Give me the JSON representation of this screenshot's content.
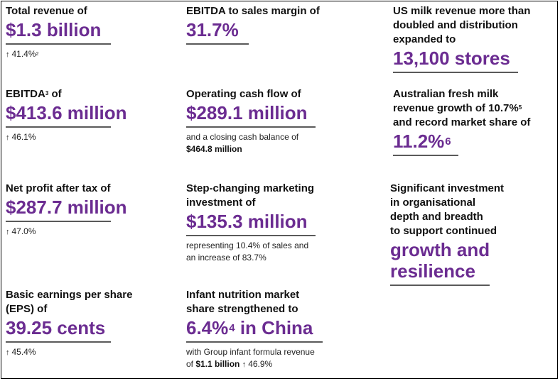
{
  "col1": {
    "revenue": {
      "label": "Total revenue of",
      "value": "$1.3 billion",
      "growth": "41.4%",
      "growth_note": "2"
    },
    "ebitda": {
      "label": "EBITDA",
      "label_note": "3",
      "label_suffix": " of",
      "value": "$413.6 million",
      "growth": "46.1%"
    },
    "npat": {
      "label": "Net profit after tax of",
      "value": "$287.7 million",
      "growth": "47.0%"
    },
    "eps": {
      "label_line1": "Basic earnings per share",
      "label_line2": "(EPS) of",
      "value": "39.25 cents",
      "growth": "45.4%"
    }
  },
  "col2": {
    "margin": {
      "label": "EBITDA to sales margin of",
      "value": "31.7%"
    },
    "cashflow": {
      "label": "Operating cash flow of",
      "value": "$289.1 million",
      "note_line1": "and a closing cash balance of",
      "note_line2": "$464.8 million"
    },
    "marketing": {
      "label_line1": "Step-changing marketing",
      "label_line2": "investment of",
      "value": "$135.3 million",
      "note_line1": "representing 10.4% of sales and",
      "note_line2": "an increase of 83.7%"
    },
    "infant": {
      "label_line1": "Infant nutrition market",
      "label_line2": "share strengthened to",
      "value_main": "6.4%",
      "value_note": "4",
      "value_suffix": " in China",
      "note_line1": "with Group infant formula revenue",
      "note_prefix": "of ",
      "note_bold": "$1.1 billion",
      "note_growth": "46.9%"
    }
  },
  "col3": {
    "us": {
      "label_line1": "US milk revenue more than",
      "label_line2": "doubled and distribution",
      "label_line3": "expanded to",
      "value": "13,100 stores"
    },
    "australia": {
      "label_line1": "Australian fresh milk",
      "label_line2": "revenue growth of 10.7%",
      "label_line2_note": "5",
      "label_line3": "and record market share of",
      "value": "11.2%",
      "value_note": "6"
    },
    "investment": {
      "label_line1": "Significant investment",
      "label_line2": "in organisational",
      "label_line3": "depth and breadth",
      "label_line4": "to support continued",
      "value_line1": "growth and",
      "value_line2": "resilience"
    }
  },
  "icons": {
    "up_arrow": "up-arrow-icon"
  },
  "colors": {
    "accent": "#6b2c91",
    "rule": "#5a5a5a",
    "text": "#111111"
  }
}
